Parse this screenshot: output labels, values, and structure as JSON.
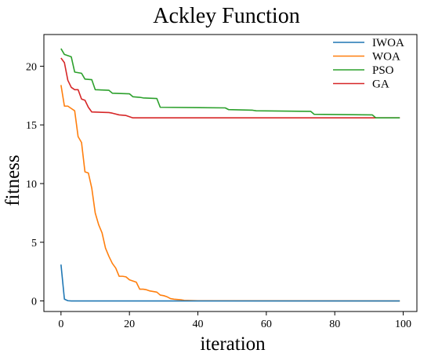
{
  "chart_data": {
    "type": "line",
    "title": "Ackley Function",
    "xlabel": "iteration",
    "ylabel": "fitness",
    "xlim": [
      -5,
      104
    ],
    "ylim": [
      -0.9,
      22.7
    ],
    "xticks": [
      0,
      20,
      40,
      60,
      80,
      100
    ],
    "yticks": [
      0,
      5,
      10,
      15,
      20
    ],
    "xtick_labels": [
      "0",
      "20",
      "40",
      "60",
      "80",
      "100"
    ],
    "ytick_labels": [
      "0",
      "5",
      "10",
      "15",
      "20"
    ],
    "grid": false,
    "legend_position": "top-right",
    "series": [
      {
        "name": "IWOA",
        "color": "#1f77b4",
        "points": [
          [
            0,
            3.1
          ],
          [
            1,
            0.15
          ],
          [
            2,
            0.02
          ],
          [
            3,
            0.0
          ],
          [
            99,
            0.0
          ]
        ]
      },
      {
        "name": "WOA",
        "color": "#ff7f0e",
        "points": [
          [
            0,
            18.4
          ],
          [
            1,
            16.6
          ],
          [
            2,
            16.6
          ],
          [
            3,
            16.4
          ],
          [
            4,
            16.2
          ],
          [
            5,
            14.0
          ],
          [
            6,
            13.5
          ],
          [
            7,
            11.0
          ],
          [
            8,
            10.9
          ],
          [
            9,
            9.6
          ],
          [
            10,
            7.5
          ],
          [
            11,
            6.5
          ],
          [
            12,
            5.8
          ],
          [
            13,
            4.5
          ],
          [
            14,
            3.8
          ],
          [
            15,
            3.2
          ],
          [
            16,
            2.8
          ],
          [
            17,
            2.1
          ],
          [
            18,
            2.1
          ],
          [
            19,
            2.05
          ],
          [
            20,
            1.8
          ],
          [
            21,
            1.7
          ],
          [
            22,
            1.6
          ],
          [
            23,
            1.0
          ],
          [
            24,
            1.0
          ],
          [
            25,
            0.95
          ],
          [
            26,
            0.85
          ],
          [
            27,
            0.8
          ],
          [
            28,
            0.75
          ],
          [
            29,
            0.5
          ],
          [
            30,
            0.45
          ],
          [
            31,
            0.35
          ],
          [
            32,
            0.2
          ],
          [
            33,
            0.15
          ],
          [
            35,
            0.1
          ],
          [
            36,
            0.05
          ],
          [
            40,
            0.02
          ],
          [
            99,
            0.0
          ]
        ]
      },
      {
        "name": "PSO",
        "color": "#2ca02c",
        "points": [
          [
            0,
            21.5
          ],
          [
            1,
            21.0
          ],
          [
            2,
            20.9
          ],
          [
            3,
            20.8
          ],
          [
            4,
            19.5
          ],
          [
            6,
            19.4
          ],
          [
            7,
            18.9
          ],
          [
            9,
            18.85
          ],
          [
            10,
            18.0
          ],
          [
            14,
            17.95
          ],
          [
            15,
            17.7
          ],
          [
            20,
            17.65
          ],
          [
            21,
            17.4
          ],
          [
            23,
            17.35
          ],
          [
            24,
            17.3
          ],
          [
            28,
            17.25
          ],
          [
            29,
            16.5
          ],
          [
            48,
            16.45
          ],
          [
            49,
            16.3
          ],
          [
            56,
            16.25
          ],
          [
            57,
            16.2
          ],
          [
            73,
            16.15
          ],
          [
            74,
            15.9
          ],
          [
            91,
            15.85
          ],
          [
            92,
            15.6
          ],
          [
            99,
            15.6
          ]
        ]
      },
      {
        "name": "GA",
        "color": "#d62728",
        "points": [
          [
            0,
            20.7
          ],
          [
            1,
            20.3
          ],
          [
            2,
            18.8
          ],
          [
            3,
            18.2
          ],
          [
            4,
            18.0
          ],
          [
            5,
            18.0
          ],
          [
            6,
            17.2
          ],
          [
            7,
            17.1
          ],
          [
            8,
            16.5
          ],
          [
            9,
            16.1
          ],
          [
            14,
            16.05
          ],
          [
            15,
            16.0
          ],
          [
            17,
            15.85
          ],
          [
            19,
            15.8
          ],
          [
            20,
            15.7
          ],
          [
            21,
            15.6
          ],
          [
            99,
            15.6
          ]
        ]
      }
    ]
  }
}
